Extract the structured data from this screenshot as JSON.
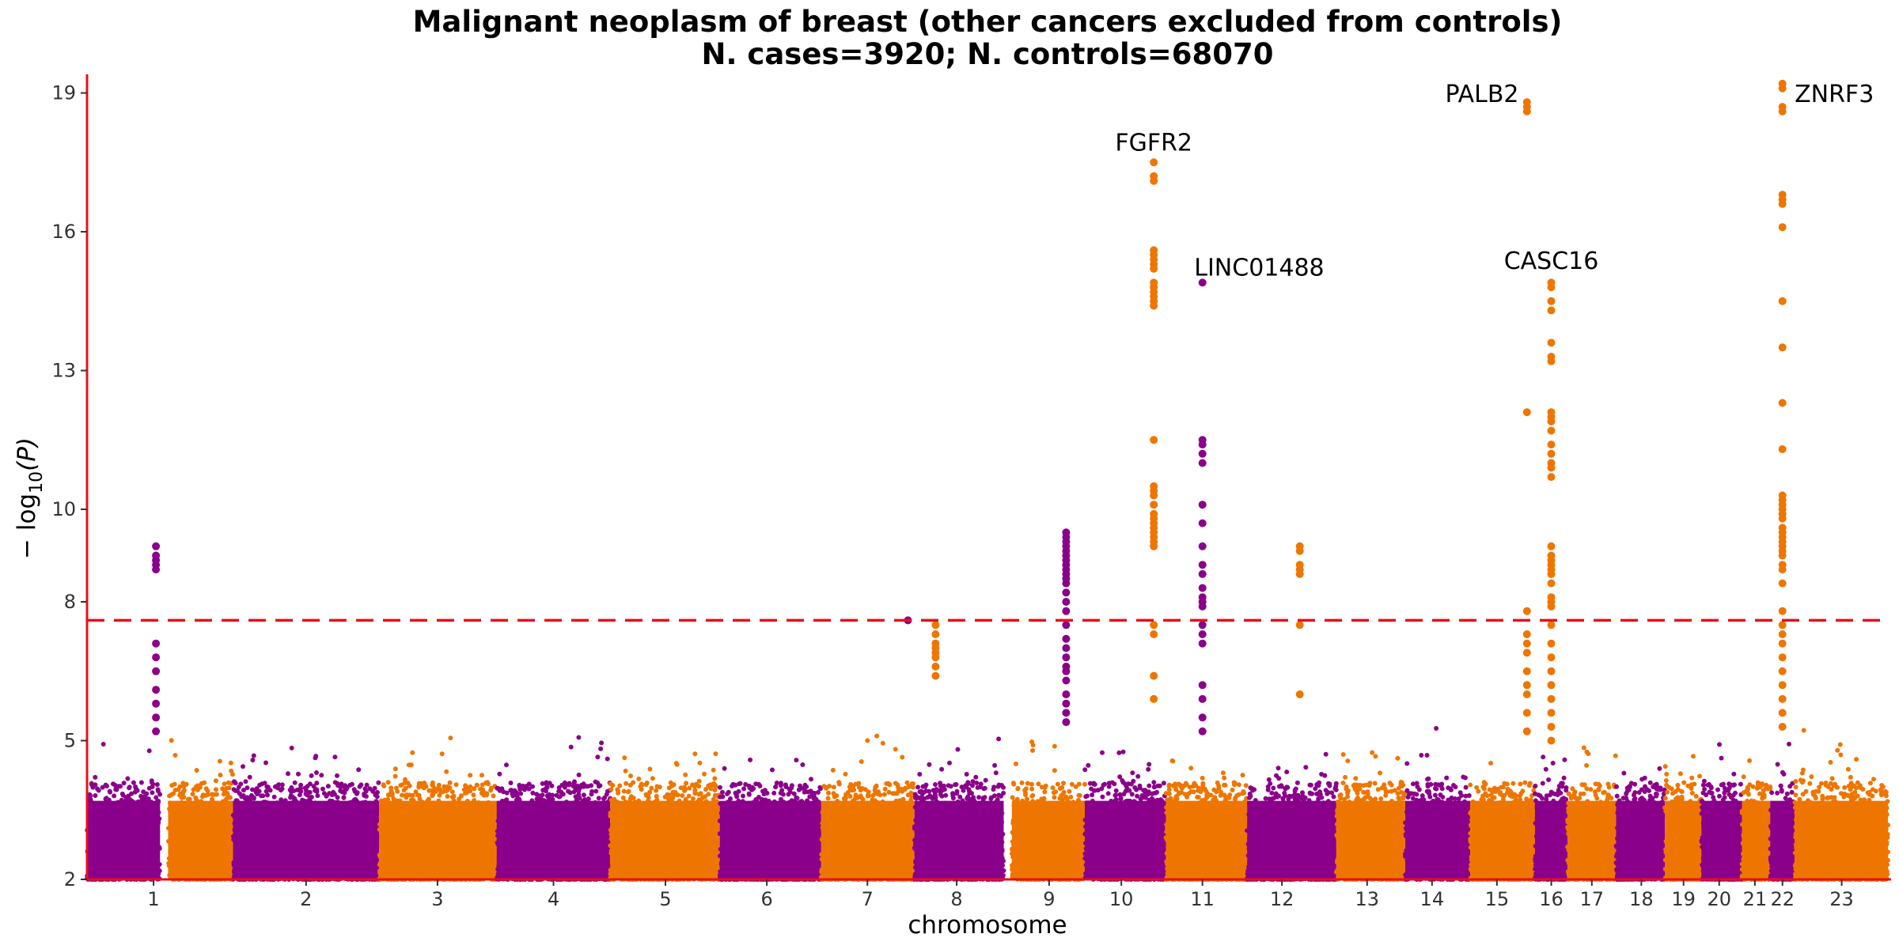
{
  "chart_data": {
    "type": "scatter",
    "title": "Malignant neoplasm of breast (other cancers excluded from controls)",
    "subtitle": "N. cases=3920; N. controls=68070",
    "xlabel": "chromosome",
    "ylabel_prefix": "− log",
    "ylabel_sub": "10",
    "ylabel_suffix": "(P)",
    "ylim": [
      2,
      19.3
    ],
    "yticks": [
      2,
      5,
      8,
      10,
      13,
      16,
      19
    ],
    "threshold": 7.6,
    "colors": {
      "odd": "#8B008B",
      "even": "#EE7600",
      "threshold": "#E8101B",
      "axis": "#E8101B"
    },
    "chromosomes": [
      {
        "label": "1",
        "start": 0,
        "end": 9
      },
      {
        "label": "",
        "start": 10,
        "end": 18
      },
      {
        "label": "2",
        "start": 18,
        "end": 36
      },
      {
        "label": "3",
        "start": 36,
        "end": 50.5
      },
      {
        "label": "4",
        "start": 50.5,
        "end": 64.5
      },
      {
        "label": "5",
        "start": 64.5,
        "end": 78
      },
      {
        "label": "6",
        "start": 78,
        "end": 90.5
      },
      {
        "label": "7",
        "start": 90.5,
        "end": 102
      },
      {
        "label": "8",
        "start": 102,
        "end": 113
      },
      {
        "label": "9",
        "start": 114,
        "end": 123
      },
      {
        "label": "10",
        "start": 123,
        "end": 133
      },
      {
        "label": "11",
        "start": 133,
        "end": 143
      },
      {
        "label": "12",
        "start": 143,
        "end": 154
      },
      {
        "label": "13",
        "start": 154,
        "end": 162.5
      },
      {
        "label": "14",
        "start": 162.5,
        "end": 170.5
      },
      {
        "label": "15",
        "start": 170.5,
        "end": 178.5
      },
      {
        "label": "16",
        "start": 178.5,
        "end": 182.5
      },
      {
        "label": "17",
        "start": 182.5,
        "end": 188.5
      },
      {
        "label": "18",
        "start": 188.5,
        "end": 194.5
      },
      {
        "label": "19",
        "start": 194.5,
        "end": 199
      },
      {
        "label": "20",
        "start": 199,
        "end": 204
      },
      {
        "label": "21",
        "start": 204,
        "end": 207.5
      },
      {
        "label": "22",
        "start": 207.5,
        "end": 210.5
      },
      {
        "label": "23",
        "start": 210.5,
        "end": 222
      }
    ],
    "xticks": [
      {
        "label": "1",
        "x": 8.2
      },
      {
        "label": "2",
        "x": 27
      },
      {
        "label": "3",
        "x": 43.2
      },
      {
        "label": "4",
        "x": 57.5
      },
      {
        "label": "5",
        "x": 71.3
      },
      {
        "label": "6",
        "x": 83.8
      },
      {
        "label": "7",
        "x": 96.2
      },
      {
        "label": "8",
        "x": 107.2
      },
      {
        "label": "9",
        "x": 118.6
      },
      {
        "label": "10",
        "x": 127.5
      },
      {
        "label": "11",
        "x": 137.5
      },
      {
        "label": "12",
        "x": 147.3
      },
      {
        "label": "13",
        "x": 157.8
      },
      {
        "label": "14",
        "x": 165.8
      },
      {
        "label": "15",
        "x": 173.8
      },
      {
        "label": "16",
        "x": 180.5
      },
      {
        "label": "17",
        "x": 185.5
      },
      {
        "label": "18",
        "x": 191.6
      },
      {
        "label": "19",
        "x": 196.8
      },
      {
        "label": "20",
        "x": 201.2
      },
      {
        "label": "21",
        "x": 205.6
      },
      {
        "label": "22",
        "x": 209
      },
      {
        "label": "23",
        "x": 216.3
      }
    ],
    "peaks": [
      {
        "x": 8.5,
        "color": "odd",
        "values": [
          9.2,
          9.0,
          8.9,
          8.8,
          8.7,
          7.1,
          6.8,
          6.5,
          6.1,
          5.8,
          5.5,
          5.2
        ]
      },
      {
        "x": 101.2,
        "color": "odd",
        "values": [
          7.6
        ]
      },
      {
        "x": 104.6,
        "color": "even",
        "values": [
          7.5,
          7.3,
          7.1,
          7.0,
          6.9,
          6.8,
          6.6,
          6.4
        ]
      },
      {
        "x": 120.7,
        "color": "odd",
        "values": [
          9.5,
          9.4,
          9.3,
          9.2,
          9.1,
          9.0,
          8.9,
          8.8,
          8.7,
          8.6,
          8.5,
          8.4,
          8.2,
          8.0,
          7.8,
          7.5,
          7.2,
          7.0,
          6.8,
          6.6,
          6.5,
          6.3,
          6.0,
          5.8,
          5.6,
          5.4
        ]
      },
      {
        "x": 131.5,
        "color": "even",
        "values": [
          17.5,
          17.2,
          17.1,
          15.6,
          15.5,
          15.4,
          15.3,
          15.2,
          14.9,
          14.8,
          14.7,
          14.6,
          14.5,
          14.4,
          11.5,
          10.5,
          10.4,
          10.3,
          10.1,
          9.9,
          9.8,
          9.7,
          9.6,
          9.5,
          9.4,
          9.3,
          9.2,
          7.5,
          7.3,
          6.4,
          5.9
        ]
      },
      {
        "x": 137.5,
        "color": "odd",
        "values": [
          14.9,
          11.5,
          11.4,
          11.2,
          11.0,
          10.1,
          9.7,
          9.2,
          8.8,
          8.6,
          8.3,
          8.1,
          8.0,
          7.9,
          7.5,
          7.3,
          7.1,
          6.2,
          5.9,
          5.5,
          5.2
        ]
      },
      {
        "x": 149.5,
        "color": "even",
        "values": [
          9.2,
          9.1,
          8.8,
          8.7,
          8.6,
          7.5,
          6.0
        ]
      },
      {
        "x": 177.5,
        "color": "even",
        "values": [
          18.8,
          18.7,
          18.6,
          12.1,
          7.8,
          7.3,
          7.1,
          6.9,
          6.5,
          6.2,
          6.0,
          5.6,
          5.2
        ]
      },
      {
        "x": 180.5,
        "color": "even",
        "values": [
          14.9,
          14.8,
          14.5,
          14.3,
          13.6,
          13.3,
          13.2,
          12.1,
          12.0,
          11.9,
          11.7,
          11.4,
          11.2,
          11.0,
          10.9,
          10.7,
          9.2,
          9.0,
          8.9,
          8.8,
          8.7,
          8.6,
          8.4,
          8.1,
          8.0,
          7.9,
          7.5,
          7.1,
          6.8,
          6.5,
          6.2,
          5.9,
          5.6,
          5.3,
          5.0
        ]
      },
      {
        "x": 209,
        "color": "even",
        "values": [
          19.2,
          19.1,
          18.7,
          18.6,
          16.8,
          16.7,
          16.6,
          16.1,
          14.5,
          13.5,
          12.3,
          11.3,
          10.3,
          10.2,
          10.1,
          10.0,
          9.9,
          9.8,
          9.6,
          9.5,
          9.4,
          9.3,
          9.2,
          9.1,
          9.0,
          8.8,
          8.7,
          8.4,
          7.8,
          7.5,
          7.3,
          7.1,
          6.8,
          6.5,
          6.2,
          5.9,
          5.6,
          5.3
        ]
      }
    ],
    "annotations": [
      {
        "text": "FGFR2",
        "x": 131.5,
        "y": 17.75,
        "anchor": "middle"
      },
      {
        "text": "LINC01488",
        "x": 144.5,
        "y": 15.05,
        "anchor": "middle"
      },
      {
        "text": "PALB2",
        "x": 176.5,
        "y": 18.8,
        "anchor": "end"
      },
      {
        "text": "CASC16",
        "x": 180.5,
        "y": 15.2,
        "anchor": "middle"
      },
      {
        "text": "ZNRF3",
        "x": 210.5,
        "y": 18.8,
        "anchor": "start"
      }
    ]
  }
}
